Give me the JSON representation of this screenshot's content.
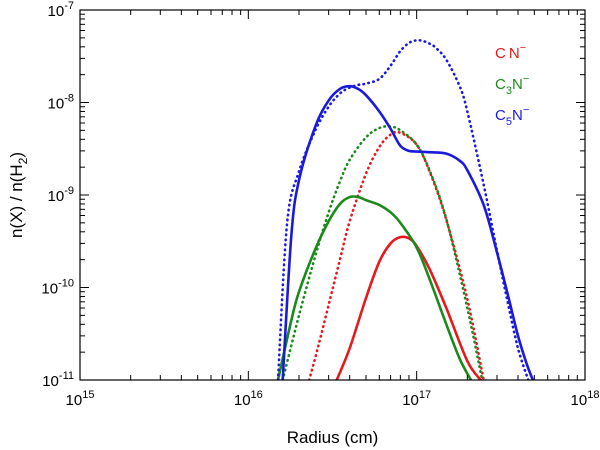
{
  "chart_data": {
    "type": "line",
    "title": "",
    "xlabel": "Radius (cm)",
    "ylabel": "n(X) / n(H2)",
    "xscale": "log",
    "yscale": "log",
    "xlim": [
      1000000000000000.0,
      1e+18
    ],
    "ylim": [
      1e-11,
      1e-07
    ],
    "x_ticks": [
      {
        "value": 1000000000000000.0,
        "base": "10",
        "exp": "15"
      },
      {
        "value": 1e+16,
        "base": "10",
        "exp": "16"
      },
      {
        "value": 1e+17,
        "base": "10",
        "exp": "17"
      },
      {
        "value": 1e+18,
        "base": "10",
        "exp": "18"
      }
    ],
    "y_ticks": [
      {
        "value": 1e-11,
        "base": "10",
        "exp": "-11"
      },
      {
        "value": 1e-10,
        "base": "10",
        "exp": "-10"
      },
      {
        "value": 1e-09,
        "base": "10",
        "exp": "-9"
      },
      {
        "value": 1e-08,
        "base": "10",
        "exp": "-8"
      },
      {
        "value": 1e-07,
        "base": "10",
        "exp": "-7"
      }
    ],
    "legend_position": "top-right",
    "legend": [
      {
        "label": "CN-",
        "color": "#e41a1c"
      },
      {
        "label": "C3N-",
        "color": "#1a8a1a"
      },
      {
        "label": "C5N-",
        "color": "#1a1adb"
      }
    ],
    "series": [
      {
        "name": "CN- (solid)",
        "color": "#e41a1c",
        "style": "solid",
        "x": [
          3.35e+16,
          4e+16,
          5e+16,
          6e+16,
          7e+16,
          8e+16,
          9e+16,
          1e+17,
          1.2e+17,
          1.5e+17,
          2e+17,
          2.4e+17
        ],
        "y": [
          1e-11,
          2.2e-11,
          7.7e-11,
          1.9e-10,
          3e-10,
          3.5e-10,
          3.4e-10,
          2.8e-10,
          1.55e-10,
          6e-11,
          1.6e-11,
          1e-11
        ]
      },
      {
        "name": "CN- (dotted)",
        "color": "#e41a1c",
        "style": "dotted",
        "x": [
          2.3e+16,
          2.6e+16,
          3e+16,
          3.5e+16,
          4e+16,
          5e+16,
          6e+16,
          7e+16,
          8e+16,
          1e+17,
          1.2e+17,
          1.5e+17,
          2e+17,
          2.5e+17
        ],
        "y": [
          1e-11,
          2.3e-11,
          6.5e-11,
          2e-10,
          5.2e-10,
          1.7e-09,
          3.3e-09,
          4.5e-09,
          4.7e-09,
          3.5e-09,
          1.75e-09,
          5.4e-10,
          7.5e-11,
          1e-11
        ]
      },
      {
        "name": "C3N- (solid)",
        "color": "#1a8a1a",
        "style": "solid",
        "x": [
          1.5e+16,
          1.8e+16,
          2e+16,
          2.5e+16,
          3e+16,
          3.5e+16,
          4e+16,
          4.5e+16,
          5e+16,
          6e+16,
          7e+16,
          8e+16,
          1e+17,
          1.2e+17,
          1.5e+17,
          1.8e+17,
          2.1e+17
        ],
        "y": [
          1e-11,
          4.4e-11,
          9e-11,
          2.6e-10,
          5.2e-10,
          8e-10,
          9.5e-10,
          9.5e-10,
          8.8e-10,
          7.8e-10,
          6.5e-10,
          5e-10,
          2.7e-10,
          1.2e-10,
          4e-11,
          1.7e-11,
          1e-11
        ]
      },
      {
        "name": "C3N- (dotted)",
        "color": "#1a8a1a",
        "style": "dotted",
        "x": [
          1.6e+16,
          2e+16,
          2.5e+16,
          3e+16,
          3.5e+16,
          4e+16,
          5e+16,
          6e+16,
          7e+16,
          8e+16,
          1e+17,
          1.2e+17,
          1.5e+17,
          2e+17,
          2.45e+17
        ],
        "y": [
          1e-11,
          5e-11,
          2.2e-10,
          6.5e-10,
          1.4e-09,
          2.4e-09,
          4.2e-09,
          5.3e-09,
          5.5e-09,
          5e-09,
          3.5e-09,
          1.8e-09,
          5.5e-10,
          6e-11,
          1e-11
        ]
      },
      {
        "name": "C5N- (solid)",
        "color": "#1a1adb",
        "style": "solid",
        "x": [
          1.6e+16,
          1.8e+16,
          2e+16,
          2.5e+16,
          3e+16,
          3.5e+16,
          4e+16,
          4.5e+16,
          5e+16,
          6e+16,
          7e+16,
          8e+16,
          9e+16,
          1e+17,
          1.2e+17,
          1.5e+17,
          1.8e+17,
          2e+17,
          2.5e+17,
          3e+17,
          3.5e+17,
          4e+17,
          4.5e+17,
          4.9e+17
        ],
        "y": [
          1e-11,
          3.6e-10,
          1.45e-09,
          5.5e-09,
          1.05e-08,
          1.4e-08,
          1.5e-08,
          1.4e-08,
          1.2e-08,
          8e-09,
          5.2e-09,
          3.4e-09,
          3e-09,
          2.95e-09,
          2.9e-09,
          2.8e-09,
          2.35e-09,
          1.85e-09,
          7.8e-10,
          2.4e-10,
          8e-11,
          3e-11,
          1.5e-11,
          1e-11
        ]
      },
      {
        "name": "C5N- (dotted)",
        "color": "#1a1adb",
        "style": "dotted",
        "x": [
          1.5e+16,
          1.7e+16,
          2e+16,
          2.5e+16,
          3e+16,
          3.5e+16,
          4e+16,
          4.5e+16,
          5e+16,
          6e+16,
          7e+16,
          8e+16,
          9e+16,
          1e+17,
          1.1e+17,
          1.2e+17,
          1.3e+17,
          1.5e+17,
          1.8e+17,
          2e+17,
          2.5e+17,
          3e+17,
          3.5e+17,
          4e+17,
          4.6e+17
        ],
        "y": [
          1e-11,
          5e-10,
          1.8e-09,
          5e-09,
          9e-09,
          1.25e-08,
          1.45e-08,
          1.55e-08,
          1.6e-08,
          1.8e-08,
          2.5e-08,
          3.6e-08,
          4.4e-08,
          4.7e-08,
          4.6e-08,
          4.3e-08,
          3.9e-08,
          2.9e-08,
          1.5e-08,
          8e-09,
          1.3e-09,
          2.5e-10,
          6.5e-11,
          2.2e-11,
          1e-11
        ]
      }
    ]
  }
}
